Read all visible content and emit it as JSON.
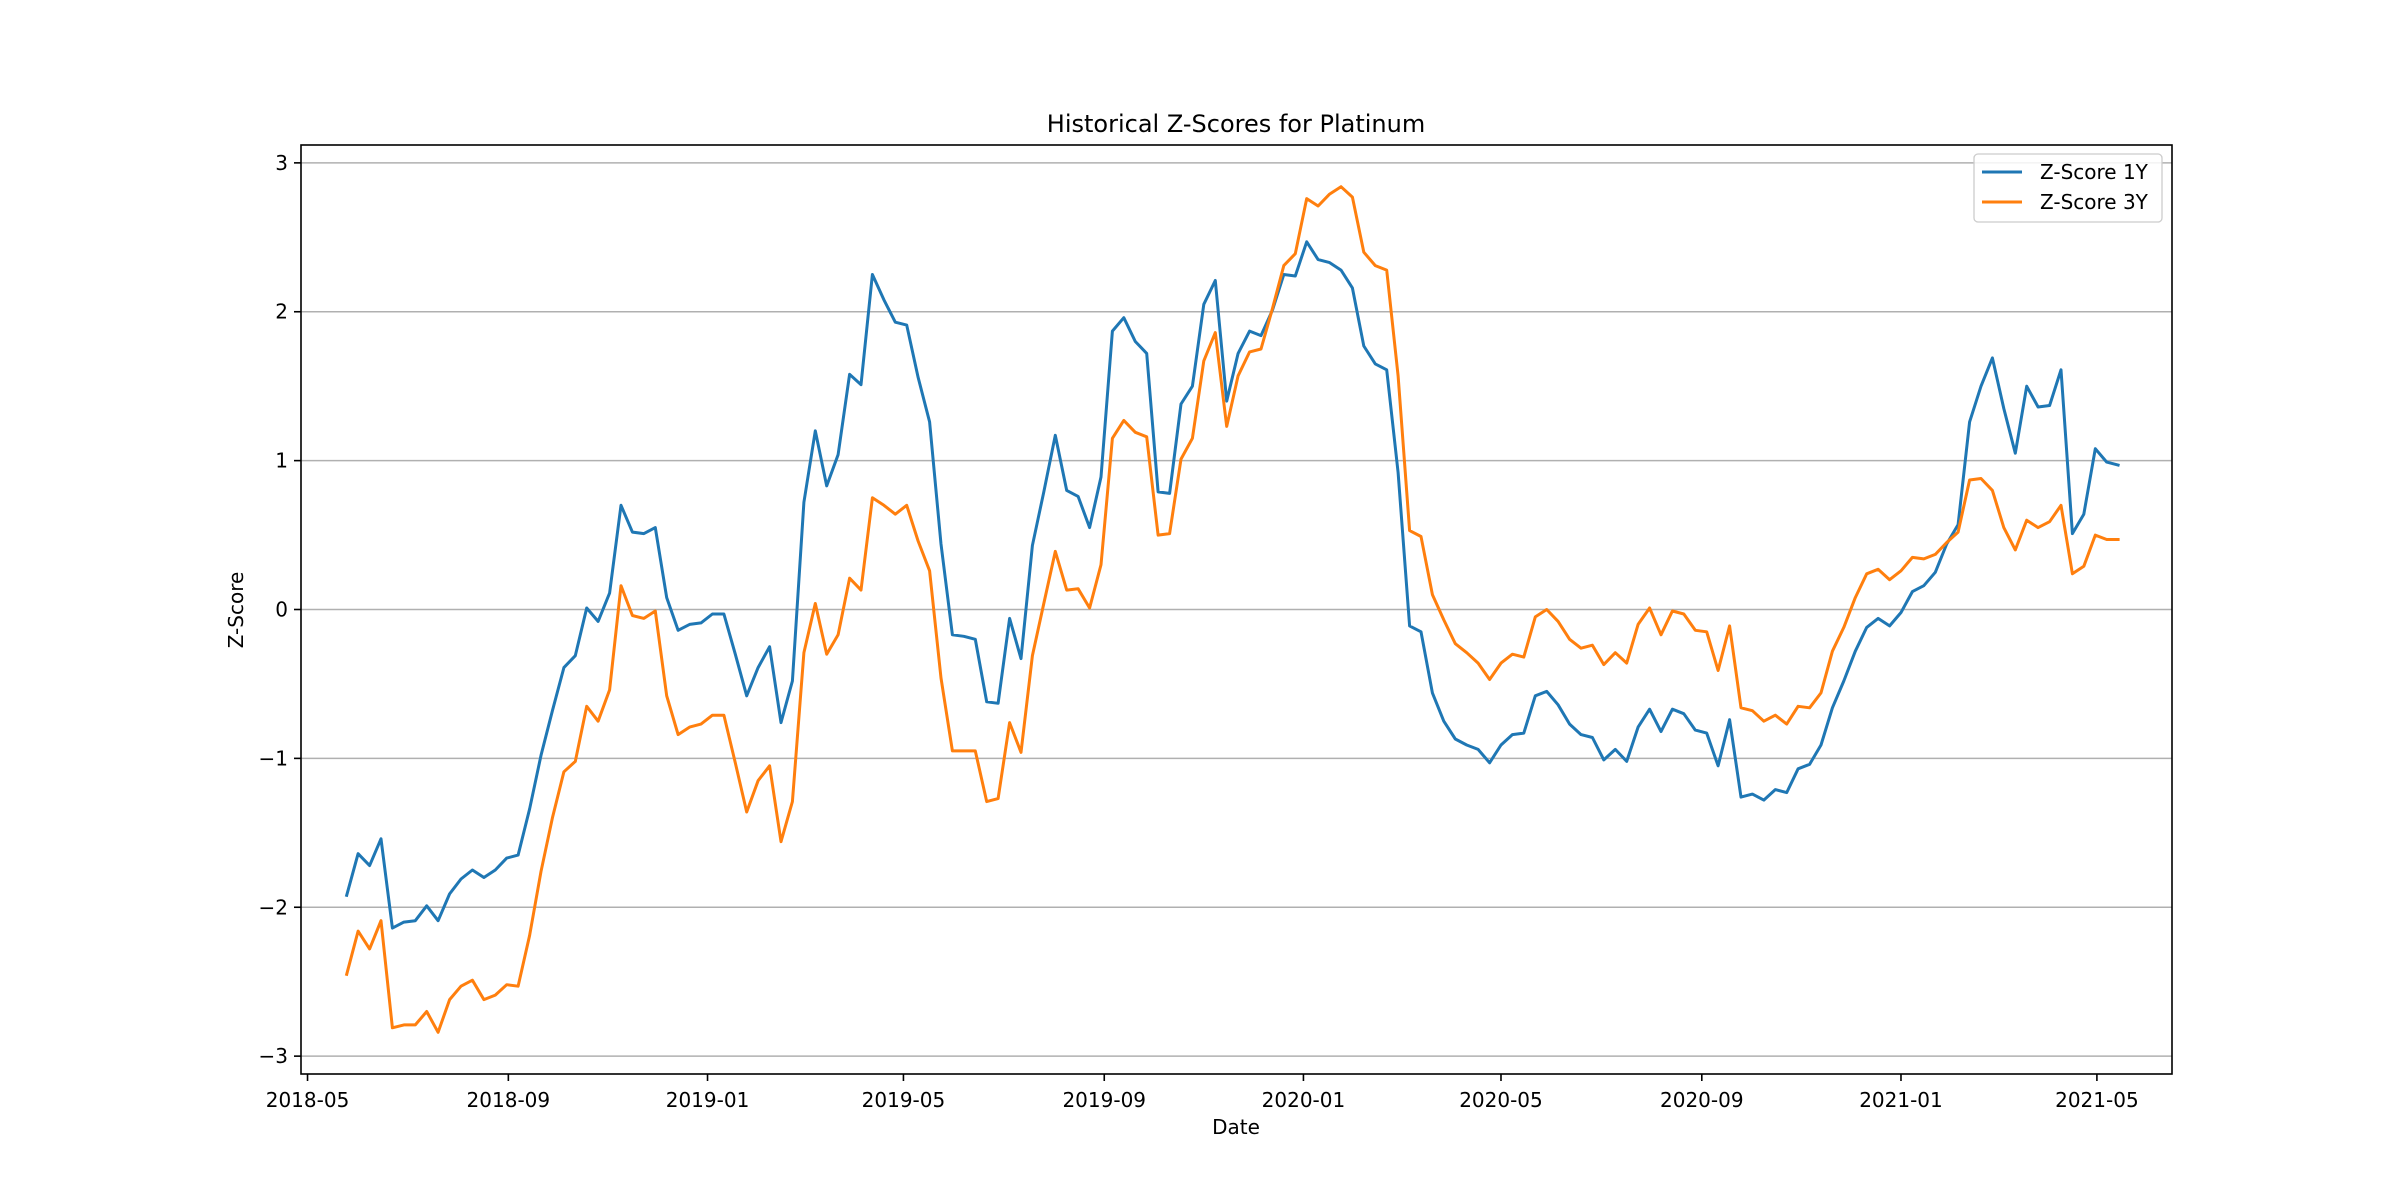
{
  "chart_data": {
    "type": "line",
    "title": "Historical Z-Scores for Platinum",
    "xlabel": "Date",
    "ylabel": "Z-Score",
    "ylim": [
      -3.12,
      3.12
    ],
    "xlim": [
      "2018-04-27",
      "2021-06-16"
    ],
    "yticks": [
      -3,
      -2,
      -1,
      0,
      1,
      2,
      3
    ],
    "ytick_labels": [
      "−3",
      "−2",
      "−1",
      "0",
      "1",
      "2",
      "3"
    ],
    "xticks": [
      "2018-05-01",
      "2018-09-01",
      "2019-01-01",
      "2019-05-01",
      "2019-09-01",
      "2020-01-01",
      "2020-05-01",
      "2020-09-01",
      "2021-01-01",
      "2021-05-01"
    ],
    "xtick_labels": [
      "2018-05",
      "2018-09",
      "2019-01",
      "2019-05",
      "2019-09",
      "2020-01",
      "2020-05",
      "2020-09",
      "2021-01",
      "2021-05"
    ],
    "grid": "horizontal",
    "legend_position": "top-right",
    "colors": {
      "series1": "#1f77b4",
      "series2": "#ff7f0e"
    },
    "x": [
      "2018-05-25",
      "2018-06-01",
      "2018-06-08",
      "2018-06-15",
      "2018-06-22",
      "2018-06-29",
      "2018-07-06",
      "2018-07-13",
      "2018-07-20",
      "2018-07-27",
      "2018-08-03",
      "2018-08-10",
      "2018-08-17",
      "2018-08-24",
      "2018-08-31",
      "2018-09-07",
      "2018-09-14",
      "2018-09-21",
      "2018-09-28",
      "2018-10-05",
      "2018-10-12",
      "2018-10-19",
      "2018-10-26",
      "2018-11-02",
      "2018-11-09",
      "2018-11-16",
      "2018-11-23",
      "2018-11-30",
      "2018-12-07",
      "2018-12-14",
      "2018-12-21",
      "2018-12-28",
      "2019-01-04",
      "2019-01-11",
      "2019-01-18",
      "2019-01-25",
      "2019-02-01",
      "2019-02-08",
      "2019-02-15",
      "2019-02-22",
      "2019-03-01",
      "2019-03-08",
      "2019-03-15",
      "2019-03-22",
      "2019-03-29",
      "2019-04-05",
      "2019-04-12",
      "2019-04-19",
      "2019-04-26",
      "2019-05-03",
      "2019-05-10",
      "2019-05-17",
      "2019-05-24",
      "2019-05-31",
      "2019-06-07",
      "2019-06-14",
      "2019-06-21",
      "2019-06-28",
      "2019-07-05",
      "2019-07-12",
      "2019-07-19",
      "2019-07-26",
      "2019-08-02",
      "2019-08-09",
      "2019-08-16",
      "2019-08-23",
      "2019-08-30",
      "2019-09-06",
      "2019-09-13",
      "2019-09-20",
      "2019-09-27",
      "2019-10-04",
      "2019-10-11",
      "2019-10-18",
      "2019-10-25",
      "2019-11-01",
      "2019-11-08",
      "2019-11-15",
      "2019-11-22",
      "2019-11-29",
      "2019-12-06",
      "2019-12-13",
      "2019-12-20",
      "2019-12-27",
      "2020-01-03",
      "2020-01-10",
      "2020-01-17",
      "2020-01-24",
      "2020-01-31",
      "2020-02-07",
      "2020-02-14",
      "2020-02-21",
      "2020-02-28",
      "2020-03-06",
      "2020-03-13",
      "2020-03-20",
      "2020-03-27",
      "2020-04-03",
      "2020-04-10",
      "2020-04-17",
      "2020-04-24",
      "2020-05-01",
      "2020-05-08",
      "2020-05-15",
      "2020-05-22",
      "2020-05-29",
      "2020-06-05",
      "2020-06-12",
      "2020-06-19",
      "2020-06-26",
      "2020-07-03",
      "2020-07-10",
      "2020-07-17",
      "2020-07-24",
      "2020-07-31",
      "2020-08-07",
      "2020-08-14",
      "2020-08-21",
      "2020-08-28",
      "2020-09-04",
      "2020-09-11",
      "2020-09-18",
      "2020-09-25",
      "2020-10-02",
      "2020-10-09",
      "2020-10-16",
      "2020-10-23",
      "2020-10-30",
      "2020-11-06",
      "2020-11-13",
      "2020-11-20",
      "2020-11-27",
      "2020-12-04",
      "2020-12-11",
      "2020-12-18",
      "2020-12-25",
      "2021-01-01",
      "2021-01-08",
      "2021-01-15",
      "2021-01-22",
      "2021-01-29",
      "2021-02-05",
      "2021-02-12",
      "2021-02-19",
      "2021-02-26",
      "2021-03-05",
      "2021-03-12",
      "2021-03-19",
      "2021-03-26",
      "2021-04-02",
      "2021-04-09",
      "2021-04-16",
      "2021-04-23",
      "2021-04-30",
      "2021-05-07",
      "2021-05-14"
    ],
    "series": [
      {
        "name": "Z-Score 1Y",
        "values": [
          -1.92,
          -1.64,
          -1.72,
          -1.54,
          -2.14,
          -2.1,
          -2.09,
          -1.99,
          -2.09,
          -1.91,
          -1.81,
          -1.75,
          -1.8,
          -1.75,
          -1.67,
          -1.65,
          -1.34,
          -0.98,
          -0.68,
          -0.39,
          -0.31,
          0.01,
          -0.08,
          0.11,
          0.7,
          0.52,
          0.51,
          0.55,
          0.08,
          -0.14,
          -0.1,
          -0.09,
          -0.03,
          -0.03,
          -0.3,
          -0.58,
          -0.39,
          -0.25,
          -0.76,
          -0.48,
          0.72,
          1.2,
          0.83,
          1.04,
          1.58,
          1.51,
          2.25,
          2.08,
          1.93,
          1.91,
          1.56,
          1.26,
          0.44,
          -0.17,
          -0.18,
          -0.2,
          -0.62,
          -0.63,
          -0.06,
          -0.33,
          0.43,
          0.79,
          1.17,
          0.8,
          0.76,
          0.55,
          0.89,
          1.87,
          1.96,
          1.8,
          1.72,
          0.79,
          0.78,
          1.38,
          1.5,
          2.05,
          2.21,
          1.4,
          1.72,
          1.87,
          1.84,
          2.01,
          2.25,
          2.24,
          2.47,
          2.35,
          2.33,
          2.28,
          2.16,
          1.77,
          1.65,
          1.61,
          0.92,
          -0.11,
          -0.15,
          -0.56,
          -0.75,
          -0.87,
          -0.91,
          -0.94,
          -1.03,
          -0.91,
          -0.84,
          -0.83,
          -0.58,
          -0.55,
          -0.64,
          -0.77,
          -0.84,
          -0.86,
          -1.01,
          -0.94,
          -1.02,
          -0.79,
          -0.67,
          -0.82,
          -0.67,
          -0.7,
          -0.81,
          -0.83,
          -1.05,
          -0.74,
          -1.26,
          -1.24,
          -1.28,
          -1.21,
          -1.23,
          -1.07,
          -1.04,
          -0.91,
          -0.66,
          -0.48,
          -0.28,
          -0.12,
          -0.06,
          -0.11,
          -0.02,
          0.12,
          0.16,
          0.25,
          0.44,
          0.57,
          1.26,
          1.5,
          1.69,
          1.35,
          1.05,
          1.5,
          1.36,
          1.37,
          1.61,
          0.51,
          0.64,
          1.08,
          0.99,
          0.97
        ]
      },
      {
        "name": "Z-Score 3Y",
        "values": [
          -2.45,
          -2.16,
          -2.28,
          -2.09,
          -2.81,
          -2.79,
          -2.79,
          -2.7,
          -2.84,
          -2.62,
          -2.53,
          -2.49,
          -2.62,
          -2.59,
          -2.52,
          -2.53,
          -2.19,
          -1.76,
          -1.4,
          -1.09,
          -1.02,
          -0.65,
          -0.75,
          -0.54,
          0.16,
          -0.04,
          -0.06,
          -0.01,
          -0.58,
          -0.84,
          -0.79,
          -0.77,
          -0.71,
          -0.71,
          -1.03,
          -1.36,
          -1.15,
          -1.05,
          -1.56,
          -1.29,
          -0.29,
          0.04,
          -0.3,
          -0.17,
          0.21,
          0.13,
          0.75,
          0.7,
          0.64,
          0.7,
          0.46,
          0.26,
          -0.46,
          -0.95,
          -0.95,
          -0.95,
          -1.29,
          -1.27,
          -0.76,
          -0.96,
          -0.31,
          0.04,
          0.39,
          0.13,
          0.14,
          0.01,
          0.3,
          1.15,
          1.27,
          1.19,
          1.16,
          0.5,
          0.51,
          1.01,
          1.15,
          1.67,
          1.86,
          1.23,
          1.57,
          1.73,
          1.75,
          2.02,
          2.31,
          2.39,
          2.76,
          2.71,
          2.79,
          2.84,
          2.77,
          2.4,
          2.31,
          2.28,
          1.57,
          0.53,
          0.49,
          0.1,
          -0.07,
          -0.23,
          -0.29,
          -0.36,
          -0.47,
          -0.36,
          -0.3,
          -0.32,
          -0.05,
          0.0,
          -0.08,
          -0.2,
          -0.26,
          -0.24,
          -0.37,
          -0.29,
          -0.36,
          -0.1,
          0.01,
          -0.17,
          -0.01,
          -0.03,
          -0.14,
          -0.15,
          -0.41,
          -0.11,
          -0.66,
          -0.68,
          -0.75,
          -0.71,
          -0.77,
          -0.65,
          -0.66,
          -0.56,
          -0.28,
          -0.12,
          0.08,
          0.24,
          0.27,
          0.2,
          0.26,
          0.35,
          0.34,
          0.37,
          0.45,
          0.52,
          0.87,
          0.88,
          0.8,
          0.55,
          0.4,
          0.6,
          0.55,
          0.59,
          0.7,
          0.24,
          0.29,
          0.5,
          0.47,
          0.47
        ]
      }
    ]
  }
}
